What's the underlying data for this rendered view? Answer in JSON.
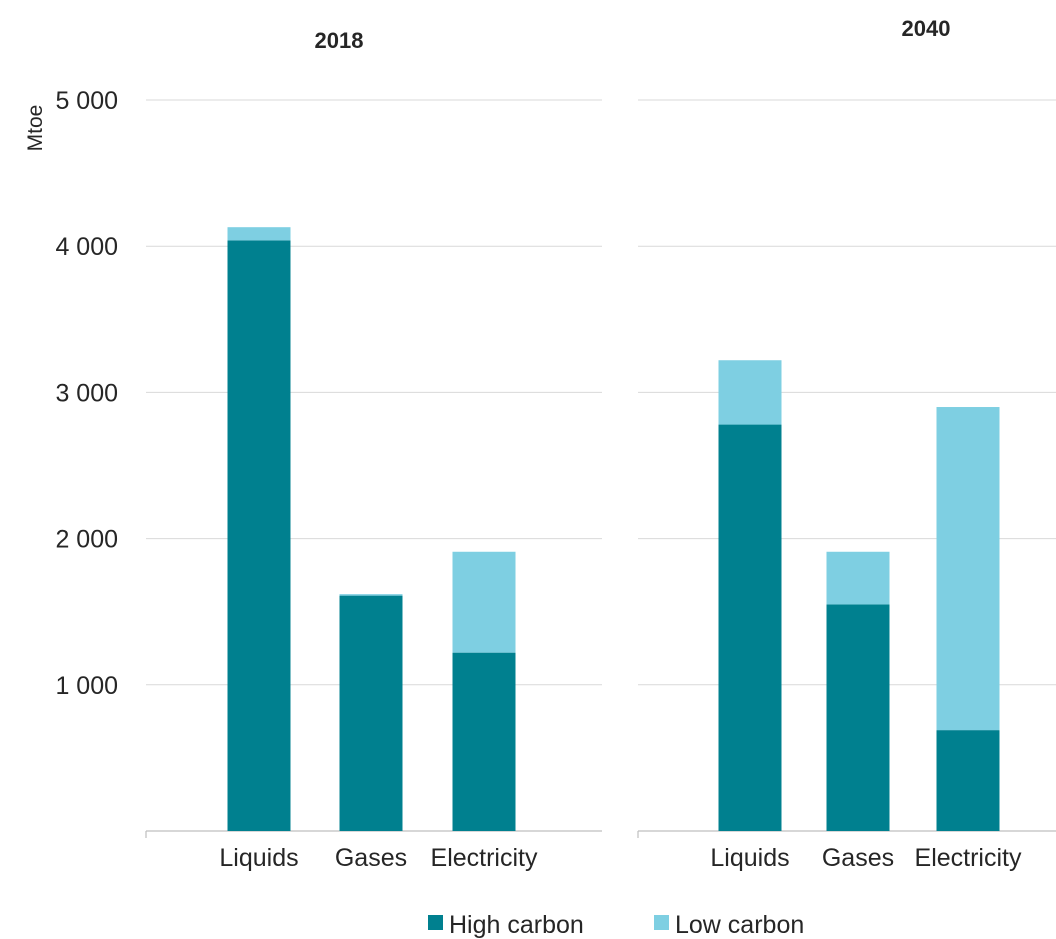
{
  "chart_data": {
    "type": "bar",
    "stacked": true,
    "ylabel": "Mtoe",
    "ylim": [
      0,
      5000
    ],
    "yticks": [
      1000,
      2000,
      3000,
      4000,
      5000
    ],
    "ytick_labels": [
      "1 000",
      "2 000",
      "3 000",
      "4 000",
      "5 000"
    ],
    "grid": true,
    "legend_position": "bottom",
    "colors": {
      "High carbon": "#00808f",
      "Low carbon": "#7ecfe2"
    },
    "panels": [
      {
        "title": "2018",
        "categories": [
          "Liquids",
          "Gases",
          "Electricity"
        ],
        "series": [
          {
            "name": "High carbon",
            "values": [
              4040,
              1610,
              1220
            ]
          },
          {
            "name": "Low carbon",
            "values": [
              90,
              10,
              690
            ]
          }
        ]
      },
      {
        "title": "2040",
        "categories": [
          "Liquids",
          "Gases",
          "Electricity"
        ],
        "series": [
          {
            "name": "High carbon",
            "values": [
              2780,
              1550,
              690
            ]
          },
          {
            "name": "Low carbon",
            "values": [
              440,
              360,
              2210
            ]
          }
        ]
      }
    ]
  }
}
